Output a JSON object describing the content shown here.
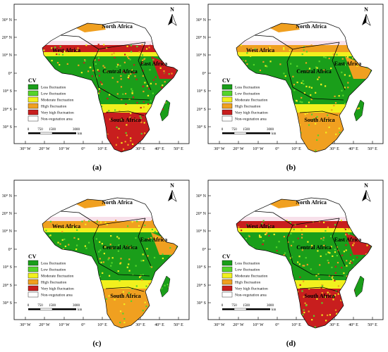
{
  "lat_labels": [
    "30° N",
    "20° N",
    "10° N",
    "0°",
    "10° S",
    "20° S",
    "30° S"
  ],
  "lon_labels": [
    "30° W",
    "20° W",
    "10° W",
    "0°",
    "10° E",
    "20° E",
    "30° E",
    "40° E",
    "50° E"
  ],
  "regions": {
    "north": "North Africa",
    "west": "West Africa",
    "east": "East Africa",
    "central": "Central Africa",
    "south": "South Africa"
  },
  "legend": {
    "title": "CV",
    "items": [
      {
        "label": "Less fluctuation",
        "color": "#1a9e1a"
      },
      {
        "label": "Low fluctuation",
        "color": "#55d42b"
      },
      {
        "label": "Moderate fluctuation",
        "color": "#f2f01e"
      },
      {
        "label": "High fluctuation",
        "color": "#f0a020"
      },
      {
        "label": "Very high fluctuation",
        "color": "#c81e1e"
      },
      {
        "label": "Non-vegetation area",
        "color": "#ffffff"
      }
    ]
  },
  "scale_bar": {
    "labels": [
      "0",
      "750",
      "1500",
      "3000"
    ],
    "unit": "km"
  },
  "north_arrow": "N",
  "panels": [
    {
      "label": "(a)",
      "fluct": 0.85
    },
    {
      "label": "(b)",
      "fluct": 0.35
    },
    {
      "label": "(c)",
      "fluct": 0.45
    },
    {
      "label": "(d)",
      "fluct": 0.7
    }
  ]
}
